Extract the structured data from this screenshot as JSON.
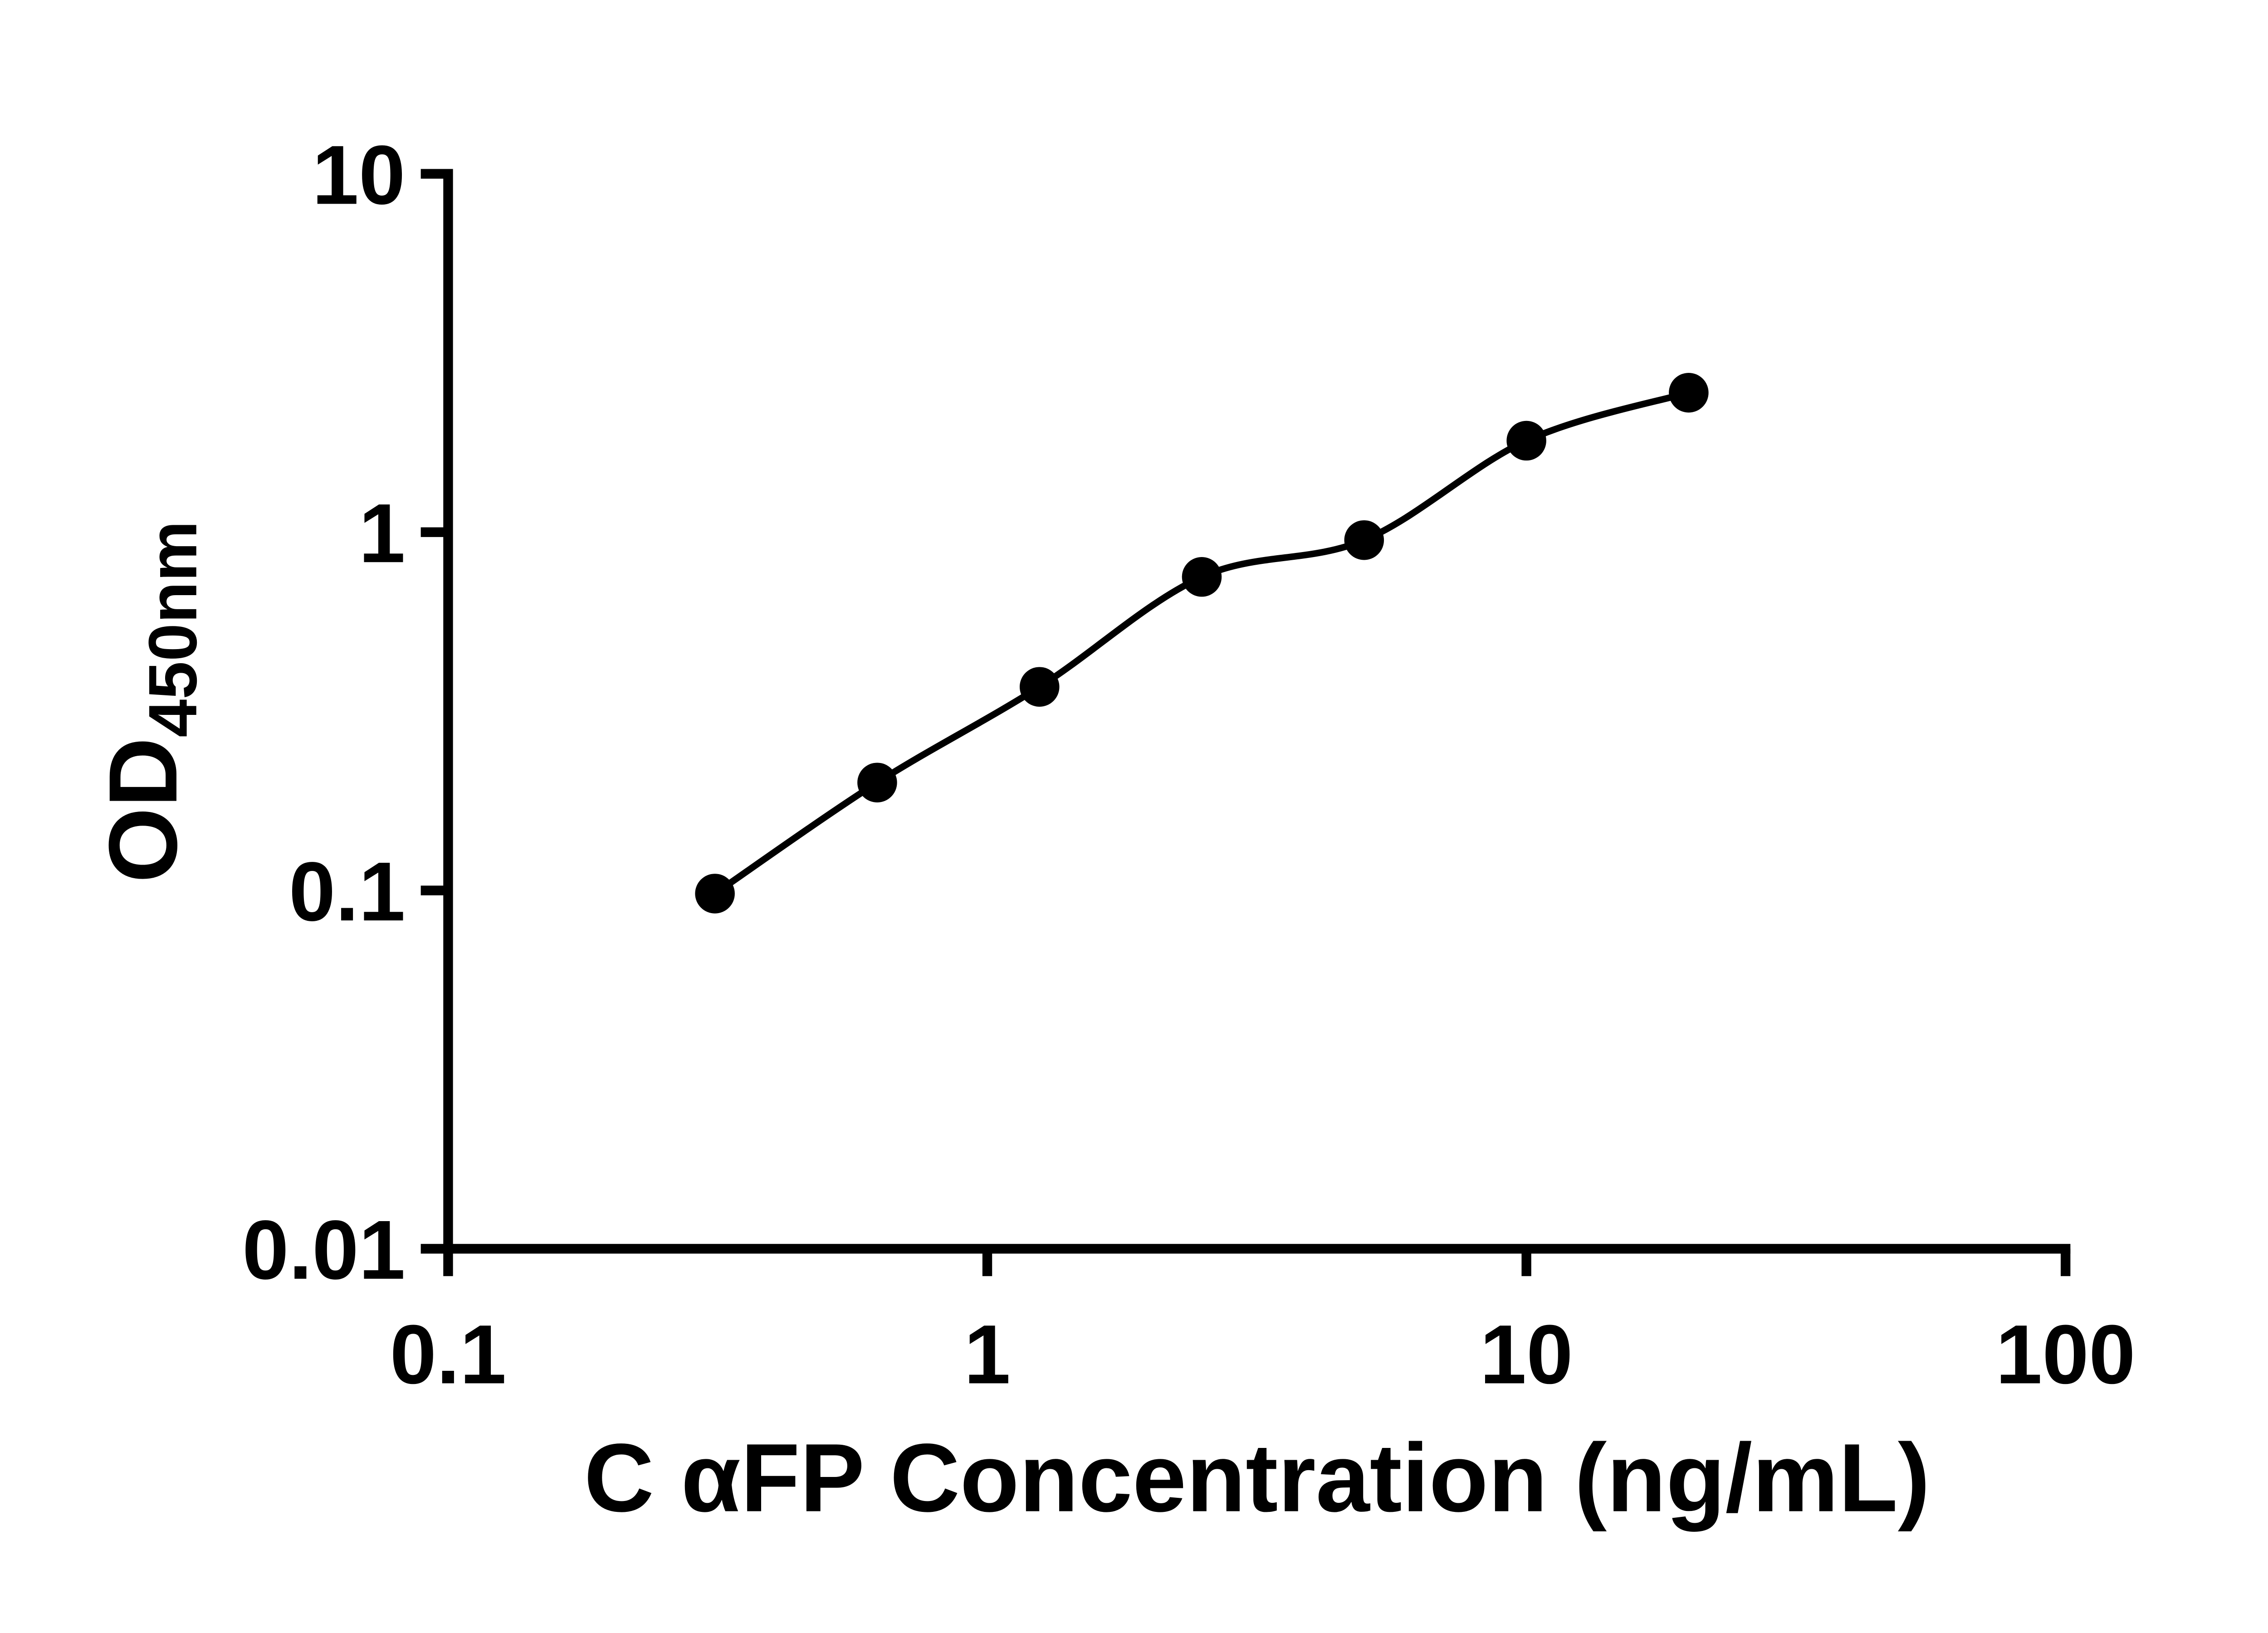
{
  "chart_data": {
    "type": "scatter",
    "title": "",
    "xlabel": "C αFP Concentration (ng/mL)",
    "ylabel_main": "OD",
    "ylabel_sub": "450nm",
    "x_scale": "log",
    "y_scale": "log",
    "xlim": [
      0.1,
      100
    ],
    "ylim": [
      0.01,
      10
    ],
    "x_ticks": [
      0.1,
      1,
      10,
      100
    ],
    "x_tick_labels": [
      "0.1",
      "1",
      "10",
      "100"
    ],
    "y_ticks": [
      0.01,
      0.1,
      1,
      10
    ],
    "y_tick_labels": [
      "0.01",
      "0.1",
      "1",
      "10"
    ],
    "grid": "off",
    "legend": "none",
    "points": [
      {
        "x": 0.3125,
        "y": 0.098
      },
      {
        "x": 0.625,
        "y": 0.2
      },
      {
        "x": 1.25,
        "y": 0.37
      },
      {
        "x": 2.5,
        "y": 0.75
      },
      {
        "x": 5,
        "y": 0.95
      },
      {
        "x": 10,
        "y": 1.8
      },
      {
        "x": 20,
        "y": 2.45
      }
    ],
    "marker_color": "#000000",
    "line_color": "#000000",
    "background_color": "#ffffff"
  }
}
